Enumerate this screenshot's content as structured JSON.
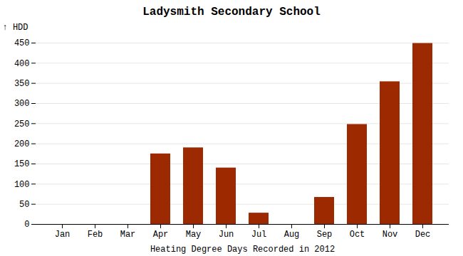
{
  "chart_data": {
    "type": "bar",
    "title": "Ladysmith Secondary School",
    "xlabel": "Heating Degree Days Recorded in 2012",
    "ylabel": "HDD",
    "categories": [
      "Jan",
      "Feb",
      "Mar",
      "Apr",
      "May",
      "Jun",
      "Jul",
      "Aug",
      "Sep",
      "Oct",
      "Nov",
      "Dec"
    ],
    "values": [
      0,
      0,
      0,
      175,
      190,
      140,
      28,
      0,
      67,
      248,
      354,
      449
    ],
    "color": "#9C2900",
    "ylim": [
      0,
      450
    ],
    "yticks": [
      0,
      50,
      100,
      150,
      200,
      250,
      300,
      350,
      400,
      450
    ],
    "grid": true
  }
}
